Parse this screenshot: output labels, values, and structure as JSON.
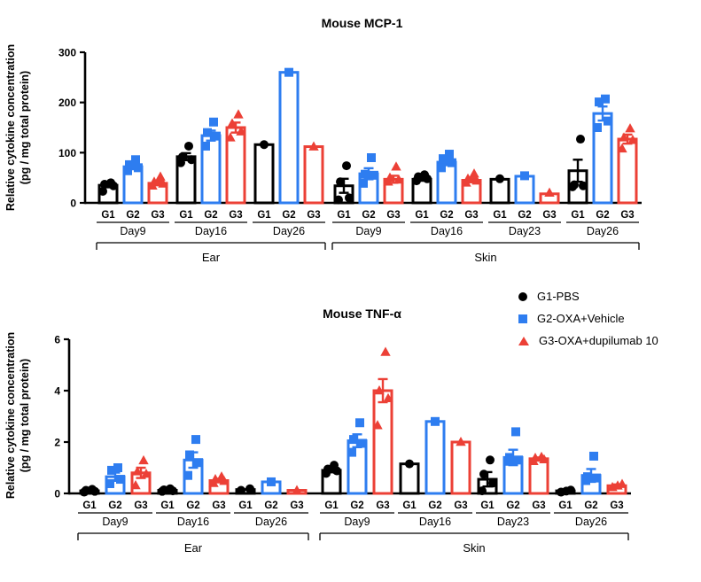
{
  "ylabel_lines": {
    "line1": "Relative cytokine concentration",
    "line2": "(pg / mg total protein)"
  },
  "legend": {
    "items": [
      {
        "label": "G1-PBS",
        "marker": "circle-icon",
        "color": "#000000"
      },
      {
        "label": "G2-OXA+Vehicle",
        "marker": "square-icon",
        "color": "#2E7DF0"
      },
      {
        "label": "G3-OXA+dupilumab 10",
        "marker": "triangle-icon",
        "color": "#EC4036"
      }
    ]
  },
  "chart_data": [
    {
      "type": "bar",
      "title": "Mouse MCP-1",
      "ylabel": "Relative cytokine concentration (pg / mg total protein)",
      "ylim": [
        0,
        300
      ],
      "yticks": [
        0,
        100,
        200,
        300
      ],
      "grid": false,
      "legend_position": "right-of-bottom-chart",
      "sections": [
        {
          "label": "Ear",
          "days": [
            {
              "label": "Day9",
              "groups": [
                {
                  "group": "G1",
                  "mean": 35,
                  "sem": 4,
                  "points": [
                    23,
                    34,
                    37,
                    40
                  ]
                },
                {
                  "group": "G2",
                  "mean": 72,
                  "sem": 5,
                  "points": [
                    64,
                    70,
                    76,
                    86
                  ]
                },
                {
                  "group": "G3",
                  "mean": 39,
                  "sem": 4,
                  "points": [
                    34,
                    38,
                    42,
                    52
                  ]
                }
              ]
            },
            {
              "label": "Day16",
              "groups": [
                {
                  "group": "G1",
                  "mean": 92,
                  "sem": 7,
                  "points": [
                    80,
                    86,
                    92,
                    113
                  ]
                },
                {
                  "group": "G2",
                  "mean": 134,
                  "sem": 10,
                  "points": [
                    113,
                    133,
                    140,
                    161
                  ]
                },
                {
                  "group": "G3",
                  "mean": 150,
                  "sem": 10,
                  "points": [
                    130,
                    142,
                    158,
                    176
                  ]
                }
              ]
            },
            {
              "label": "Day26",
              "groups": [
                {
                  "group": "G1",
                  "mean": 116,
                  "sem": 0,
                  "points": [
                    116
                  ]
                },
                {
                  "group": "G2",
                  "mean": 260,
                  "sem": 0,
                  "points": [
                    260
                  ]
                },
                {
                  "group": "G3",
                  "mean": 112,
                  "sem": 0,
                  "points": [
                    112
                  ]
                }
              ]
            }
          ]
        },
        {
          "label": "Skin",
          "days": [
            {
              "label": "Day9",
              "groups": [
                {
                  "group": "G1",
                  "mean": 34,
                  "sem": 14,
                  "points": [
                    6,
                    10,
                    42,
                    74
                  ]
                },
                {
                  "group": "G2",
                  "mean": 58,
                  "sem": 11,
                  "points": [
                    39,
                    55,
                    57,
                    90
                  ]
                },
                {
                  "group": "G3",
                  "mean": 47,
                  "sem": 7,
                  "points": [
                    42,
                    46,
                    50,
                    72
                  ]
                }
              ]
            },
            {
              "label": "Day16",
              "groups": [
                {
                  "group": "G1",
                  "mean": 47,
                  "sem": 3,
                  "points": [
                    44,
                    48,
                    52,
                    56
                  ]
                },
                {
                  "group": "G2",
                  "mean": 81,
                  "sem": 6,
                  "points": [
                    70,
                    80,
                    88,
                    97
                  ]
                },
                {
                  "group": "G3",
                  "mean": 45,
                  "sem": 4,
                  "points": [
                    40,
                    44,
                    48,
                    58
                  ]
                }
              ]
            },
            {
              "label": "Day23",
              "groups": [
                {
                  "group": "G1",
                  "mean": 47,
                  "sem": 0,
                  "points": [
                    48
                  ]
                },
                {
                  "group": "G2",
                  "mean": 53,
                  "sem": 0,
                  "points": [
                    54
                  ]
                },
                {
                  "group": "G3",
                  "mean": 18,
                  "sem": 0,
                  "points": [
                    20
                  ]
                }
              ]
            },
            {
              "label": "Day26",
              "groups": [
                {
                  "group": "G1",
                  "mean": 64,
                  "sem": 22,
                  "points": [
                    32,
                    34,
                    36,
                    127
                  ]
                },
                {
                  "group": "G2",
                  "mean": 178,
                  "sem": 14,
                  "points": [
                    150,
                    163,
                    201,
                    207
                  ]
                },
                {
                  "group": "G3",
                  "mean": 127,
                  "sem": 9,
                  "points": [
                    108,
                    125,
                    130,
                    148
                  ]
                }
              ]
            }
          ]
        }
      ]
    },
    {
      "type": "bar",
      "title": "Mouse TNF-α",
      "ylabel": "Relative cytokine concentration (pg / mg total protein)",
      "ylim": [
        0,
        6
      ],
      "yticks": [
        0,
        2,
        4,
        6
      ],
      "grid": false,
      "sections": [
        {
          "label": "Ear",
          "days": [
            {
              "label": "Day9",
              "groups": [
                {
                  "group": "G1",
                  "mean": 0.1,
                  "sem": 0.03,
                  "points": [
                    0.05,
                    0.08,
                    0.12,
                    0.16
                  ]
                },
                {
                  "group": "G2",
                  "mean": 0.65,
                  "sem": 0.16,
                  "points": [
                    0.38,
                    0.55,
                    0.9,
                    1.0
                  ]
                },
                {
                  "group": "G3",
                  "mean": 0.8,
                  "sem": 0.2,
                  "points": [
                    0.31,
                    0.76,
                    0.85,
                    1.28
                  ]
                }
              ]
            },
            {
              "label": "Day16",
              "groups": [
                {
                  "group": "G1",
                  "mean": 0.12,
                  "sem": 0.03,
                  "points": [
                    0.08,
                    0.1,
                    0.14,
                    0.18
                  ]
                },
                {
                  "group": "G2",
                  "mean": 1.3,
                  "sem": 0.3,
                  "points": [
                    0.7,
                    1.2,
                    1.5,
                    2.1
                  ]
                },
                {
                  "group": "G3",
                  "mean": 0.5,
                  "sem": 0.07,
                  "points": [
                    0.4,
                    0.48,
                    0.55,
                    0.65
                  ]
                }
              ]
            },
            {
              "label": "Day26",
              "groups": [
                {
                  "group": "G1",
                  "mean": 0.15,
                  "sem": 0,
                  "points": [
                    0.12,
                    0.18
                  ]
                },
                {
                  "group": "G2",
                  "mean": 0.45,
                  "sem": 0,
                  "points": [
                    0.45
                  ]
                },
                {
                  "group": "G3",
                  "mean": 0.12,
                  "sem": 0,
                  "points": [
                    0.12
                  ]
                }
              ]
            }
          ]
        },
        {
          "label": "Skin",
          "days": [
            {
              "label": "Day9",
              "groups": [
                {
                  "group": "G1",
                  "mean": 0.9,
                  "sem": 0.08,
                  "points": [
                    0.78,
                    0.88,
                    0.95,
                    1.1
                  ]
                },
                {
                  "group": "G2",
                  "mean": 2.05,
                  "sem": 0.25,
                  "points": [
                    1.6,
                    1.95,
                    2.1,
                    2.75
                  ]
                },
                {
                  "group": "G3",
                  "mean": 4.0,
                  "sem": 0.45,
                  "points": [
                    2.65,
                    3.7,
                    4.0,
                    5.5
                  ]
                }
              ]
            },
            {
              "label": "Day16",
              "groups": [
                {
                  "group": "G1",
                  "mean": 1.15,
                  "sem": 0,
                  "points": [
                    1.15
                  ]
                },
                {
                  "group": "G2",
                  "mean": 2.8,
                  "sem": 0,
                  "points": [
                    2.8
                  ]
                },
                {
                  "group": "G3",
                  "mean": 2.0,
                  "sem": 0,
                  "points": [
                    2.0
                  ]
                }
              ]
            },
            {
              "label": "Day23",
              "groups": [
                {
                  "group": "G1",
                  "mean": 0.55,
                  "sem": 0.28,
                  "points": [
                    0.1,
                    0.4,
                    0.75,
                    1.3
                  ]
                },
                {
                  "group": "G2",
                  "mean": 1.4,
                  "sem": 0.3,
                  "points": [
                    1.25,
                    1.3,
                    1.4,
                    2.4
                  ]
                },
                {
                  "group": "G3",
                  "mean": 1.35,
                  "sem": 0.05,
                  "points": [
                    1.25,
                    1.32,
                    1.38,
                    1.42
                  ]
                }
              ]
            },
            {
              "label": "Day26",
              "groups": [
                {
                  "group": "G1",
                  "mean": 0.1,
                  "sem": 0.03,
                  "points": [
                    0.05,
                    0.09,
                    0.13
                  ]
                },
                {
                  "group": "G2",
                  "mean": 0.7,
                  "sem": 0.25,
                  "points": [
                    0.5,
                    0.6,
                    0.65,
                    1.45
                  ]
                },
                {
                  "group": "G3",
                  "mean": 0.3,
                  "sem": 0.05,
                  "points": [
                    0.24,
                    0.3,
                    0.36
                  ]
                }
              ]
            }
          ]
        }
      ]
    }
  ]
}
